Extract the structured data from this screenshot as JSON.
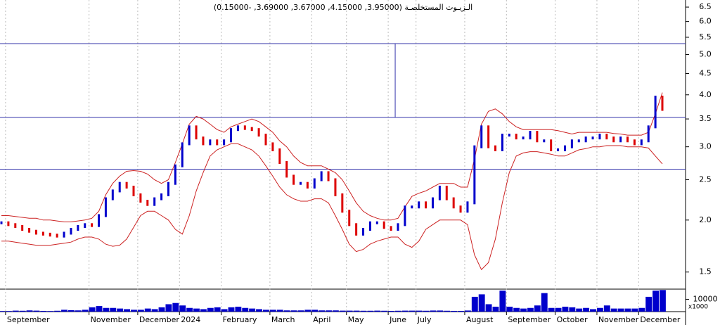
{
  "chart_data": {
    "type": "stock",
    "title": "الـزيـوت المستخلصـة (3.95000, 4.15000, 3.67000, 3.69000, -0.15000)",
    "log_scale": true,
    "ylim": [
      1.37,
      6.76
    ],
    "yticks": [
      6.5,
      {
        "value": 6,
        "label": "6.0"
      },
      5.5,
      {
        "value": 5,
        "label": "5.0"
      },
      4.5,
      {
        "value": 4,
        "label": "4.0"
      },
      3.5,
      {
        "value": 3,
        "label": "3.0"
      },
      2.5,
      {
        "value": 2,
        "label": "2.0"
      },
      1.5
    ],
    "hlines": [
      5.31,
      3.53,
      2.65
    ],
    "categories": [
      null,
      "September",
      null,
      null,
      null,
      null,
      null,
      null,
      null,
      null,
      null,
      null,
      null,
      "November",
      null,
      null,
      null,
      null,
      null,
      null,
      "December",
      null,
      null,
      null,
      null,
      null,
      "2024",
      null,
      null,
      null,
      null,
      null,
      "February",
      null,
      null,
      null,
      null,
      null,
      null,
      "March",
      null,
      null,
      null,
      null,
      null,
      "April",
      null,
      null,
      null,
      null,
      "May",
      null,
      null,
      null,
      null,
      null,
      "June",
      null,
      null,
      null,
      "July",
      null,
      null,
      null,
      null,
      null,
      null,
      "August",
      null,
      null,
      null,
      null,
      null,
      "September",
      null,
      null,
      null,
      null,
      null,
      null,
      "October",
      null,
      null,
      null,
      null,
      null,
      "November",
      null,
      null,
      null,
      null,
      null,
      "December",
      null,
      null,
      null
    ],
    "series": [
      {
        "name": "close",
        "up_color": "#0000cc",
        "down_color": "#dd0000",
        "values": [
          1.97,
          1.95,
          1.93,
          1.9,
          1.88,
          1.86,
          1.85,
          1.84,
          1.83,
          1.86,
          1.9,
          1.93,
          1.95,
          1.94,
          2.05,
          2.25,
          2.35,
          2.45,
          2.4,
          2.3,
          2.22,
          2.18,
          2.25,
          2.3,
          2.45,
          2.7,
          3.05,
          3.35,
          3.15,
          3.05,
          3.1,
          3.05,
          3.1,
          3.3,
          3.35,
          3.32,
          3.3,
          3.2,
          3.05,
          2.95,
          2.75,
          2.55,
          2.45,
          2.45,
          2.4,
          2.5,
          2.6,
          2.5,
          2.3,
          2.1,
          1.95,
          1.85,
          1.9,
          1.97,
          1.97,
          1.92,
          1.9,
          1.95,
          2.15,
          2.15,
          2.2,
          2.15,
          2.25,
          2.4,
          2.25,
          2.15,
          2.1,
          2.2,
          3.0,
          3.35,
          3.0,
          2.95,
          3.2,
          3.2,
          3.15,
          3.15,
          3.25,
          3.1,
          3.1,
          2.95,
          2.95,
          3.0,
          3.1,
          3.1,
          3.15,
          3.15,
          3.2,
          3.15,
          3.1,
          3.15,
          3.1,
          3.05,
          3.1,
          3.35,
          3.95,
          3.69
        ]
      },
      {
        "name": "upper",
        "color": "#cc2222",
        "values": [
          2.05,
          2.05,
          2.04,
          2.03,
          2.02,
          2.02,
          2.0,
          2.0,
          1.99,
          1.98,
          1.98,
          1.99,
          2.0,
          2.02,
          2.1,
          2.3,
          2.45,
          2.55,
          2.62,
          2.63,
          2.62,
          2.58,
          2.5,
          2.45,
          2.5,
          2.75,
          3.05,
          3.4,
          3.55,
          3.5,
          3.4,
          3.3,
          3.25,
          3.35,
          3.4,
          3.45,
          3.5,
          3.45,
          3.35,
          3.25,
          3.1,
          3.0,
          2.85,
          2.75,
          2.7,
          2.7,
          2.7,
          2.65,
          2.6,
          2.5,
          2.35,
          2.2,
          2.1,
          2.05,
          2.02,
          2.0,
          2.0,
          2.02,
          2.15,
          2.28,
          2.32,
          2.35,
          2.4,
          2.45,
          2.45,
          2.45,
          2.4,
          2.4,
          2.8,
          3.4,
          3.65,
          3.7,
          3.6,
          3.45,
          3.35,
          3.3,
          3.3,
          3.3,
          3.3,
          3.3,
          3.28,
          3.25,
          3.22,
          3.25,
          3.25,
          3.25,
          3.25,
          3.25,
          3.23,
          3.22,
          3.2,
          3.2,
          3.2,
          3.25,
          3.6,
          4.05
        ]
      },
      {
        "name": "lower",
        "color": "#cc2222",
        "values": [
          1.78,
          1.78,
          1.77,
          1.76,
          1.75,
          1.74,
          1.74,
          1.74,
          1.75,
          1.76,
          1.77,
          1.8,
          1.82,
          1.82,
          1.8,
          1.75,
          1.73,
          1.74,
          1.8,
          1.92,
          2.05,
          2.1,
          2.1,
          2.05,
          2.0,
          1.9,
          1.85,
          2.05,
          2.35,
          2.6,
          2.85,
          2.95,
          3.0,
          3.05,
          3.05,
          3.0,
          2.95,
          2.85,
          2.7,
          2.55,
          2.4,
          2.3,
          2.25,
          2.22,
          2.22,
          2.25,
          2.25,
          2.2,
          2.05,
          1.9,
          1.75,
          1.68,
          1.7,
          1.75,
          1.78,
          1.8,
          1.82,
          1.82,
          1.75,
          1.72,
          1.78,
          1.9,
          1.95,
          2.0,
          2.0,
          2.0,
          2.0,
          1.95,
          1.65,
          1.52,
          1.58,
          1.8,
          2.2,
          2.6,
          2.85,
          2.9,
          2.92,
          2.92,
          2.9,
          2.88,
          2.85,
          2.85,
          2.9,
          2.95,
          2.97,
          3.0,
          3.0,
          3.02,
          3.02,
          3.02,
          3.0,
          3.0,
          3.0,
          2.98,
          2.85,
          2.73
        ]
      }
    ],
    "volume": {
      "color": "#0000cc",
      "unit": "x1000",
      "ylim": [
        0,
        17650
      ],
      "yticks": [
        10000
      ],
      "values": [
        500,
        500,
        800,
        700,
        1000,
        800,
        600,
        500,
        700,
        1500,
        1200,
        1000,
        1500,
        3500,
        4500,
        3000,
        3000,
        2500,
        2000,
        1500,
        1500,
        2500,
        2000,
        3500,
        6000,
        7000,
        5000,
        3000,
        2500,
        2000,
        3000,
        3500,
        2000,
        3500,
        4000,
        3000,
        2500,
        2000,
        1500,
        1500,
        1500,
        1000,
        1000,
        1000,
        1500,
        1500,
        1000,
        1000,
        1000,
        800,
        800,
        800,
        700,
        700,
        800,
        700,
        600,
        700,
        800,
        800,
        800,
        700,
        900,
        900,
        700,
        600,
        600,
        900,
        12000,
        14000,
        6000,
        4000,
        17000,
        4000,
        3000,
        2500,
        3000,
        5000,
        15000,
        3000,
        3000,
        4000,
        3500,
        2500,
        3000,
        2000,
        3000,
        5000,
        2500,
        2500,
        2500,
        2500,
        3000,
        12000,
        17000,
        17500
      ]
    }
  }
}
